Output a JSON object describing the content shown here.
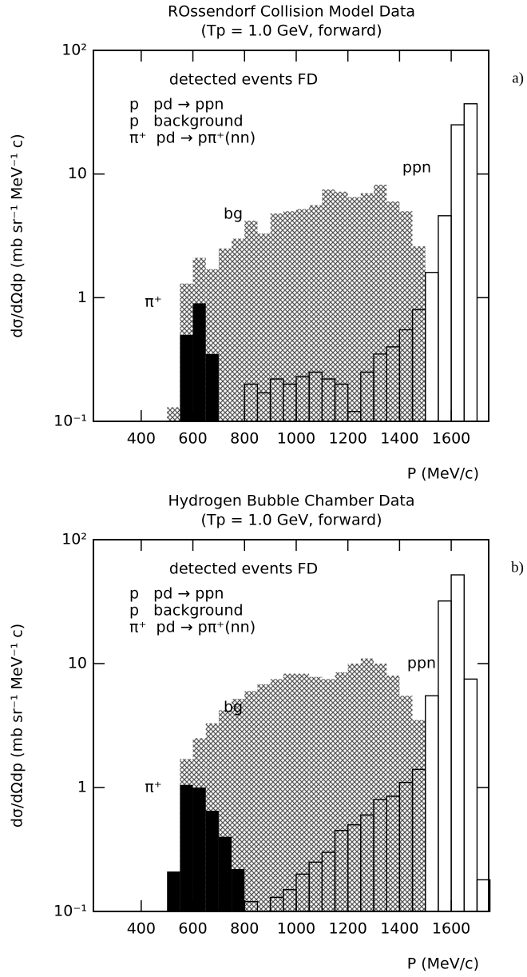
{
  "chart_data": [
    {
      "type": "histogram",
      "title": "ROssendorf Collision Model Data",
      "subtitle": "(Tp = 1.0 GeV, forward)",
      "panel_label": "a)",
      "annotation": "detected events FD",
      "legend_lines": [
        "p   pd → ppn",
        "p   background",
        "π⁺  pd → pπ⁺(nn)"
      ],
      "xlabel": "P (MeV/c)",
      "ylabel": "dσ/dΩdp (mb sr⁻¹ MeV⁻¹ c)",
      "log_y": true,
      "xlim": [
        215,
        1745
      ],
      "ylim": [
        0.1,
        100
      ],
      "xticks": [
        400,
        600,
        800,
        1000,
        1200,
        1400,
        1600
      ],
      "yticks": [
        {
          "value": 0.1,
          "label": "10⁻¹"
        },
        1,
        10,
        {
          "value": 100,
          "label": "10²"
        }
      ],
      "bins": [
        500,
        550,
        600,
        650,
        700,
        750,
        800,
        850,
        900,
        950,
        1000,
        1050,
        1100,
        1150,
        1200,
        1250,
        1300,
        1350,
        1400,
        1450,
        1500,
        1550,
        1600,
        1650,
        1700,
        1750
      ],
      "series": [
        {
          "name": "bg",
          "color": "#777777",
          "style": "hatch",
          "values": [
            0.13,
            1.3,
            2.1,
            1.7,
            2.5,
            3.0,
            4.2,
            3.3,
            4.8,
            5.0,
            5.2,
            5.6,
            7.5,
            7.2,
            6.5,
            7.0,
            8.2,
            6.0,
            5.0,
            2.6,
            null,
            null,
            null,
            null,
            null
          ]
        },
        {
          "name": "ppn",
          "color": "#000000",
          "style": "outline",
          "values": [
            null,
            null,
            null,
            null,
            null,
            null,
            0.2,
            0.17,
            0.22,
            0.2,
            0.23,
            0.25,
            0.22,
            0.2,
            0.12,
            0.25,
            0.35,
            0.4,
            0.55,
            0.8,
            1.6,
            4.6,
            25,
            37,
            null
          ]
        },
        {
          "name": "π⁺",
          "color": "#000000",
          "style": "solid",
          "values": [
            null,
            0.5,
            0.9,
            0.35,
            null,
            null,
            null,
            null,
            null,
            null,
            null,
            null,
            null,
            null,
            null,
            null,
            null,
            null,
            null,
            null,
            null,
            null,
            null,
            null,
            null
          ]
        }
      ]
    },
    {
      "type": "histogram",
      "title": "Hydrogen Bubble Chamber Data",
      "subtitle": "(Tp = 1.0 GeV, forward)",
      "panel_label": "b)",
      "annotation": "detected events FD",
      "legend_lines": [
        "p   pd → ppn",
        "p   background",
        "π⁺  pd → pπ⁺(nn)"
      ],
      "xlabel": "P (MeV/c)",
      "ylabel": "dσ/dΩdp (mb sr⁻¹ MeV⁻¹ c)",
      "log_y": true,
      "xlim": [
        215,
        1745
      ],
      "ylim": [
        0.1,
        100
      ],
      "xticks": [
        400,
        600,
        800,
        1000,
        1200,
        1400,
        1600
      ],
      "yticks": [
        {
          "value": 0.1,
          "label": "10⁻¹"
        },
        1,
        10,
        {
          "value": 100,
          "label": "10²"
        }
      ],
      "bins": [
        500,
        550,
        600,
        650,
        700,
        750,
        800,
        850,
        900,
        950,
        1000,
        1050,
        1100,
        1150,
        1200,
        1250,
        1300,
        1350,
        1400,
        1450,
        1500,
        1550,
        1600,
        1650,
        1700,
        1750
      ],
      "series": [
        {
          "name": "bg",
          "color": "#777777",
          "style": "hatch",
          "values": [
            null,
            1.7,
            2.5,
            3.3,
            4.2,
            5.2,
            6.0,
            6.8,
            7.5,
            8.3,
            8.3,
            7.8,
            7.5,
            8.5,
            10,
            11,
            10,
            8,
            5.5,
            3.5,
            null,
            null,
            null,
            null,
            null
          ]
        },
        {
          "name": "ppn",
          "color": "#000000",
          "style": "outline",
          "values": [
            null,
            null,
            null,
            null,
            null,
            null,
            0.12,
            0.1,
            0.13,
            0.15,
            0.2,
            0.25,
            0.3,
            0.45,
            0.5,
            0.6,
            0.8,
            0.85,
            1.1,
            1.4,
            5.5,
            32,
            52,
            7.5,
            0.18
          ]
        },
        {
          "name": "π⁺",
          "color": "#000000",
          "style": "solid",
          "values": [
            0.21,
            1.05,
            1.0,
            0.65,
            0.4,
            0.22,
            null,
            null,
            null,
            null,
            null,
            null,
            null,
            null,
            null,
            null,
            null,
            null,
            null,
            null,
            null,
            null,
            null,
            null,
            null
          ]
        }
      ]
    }
  ]
}
